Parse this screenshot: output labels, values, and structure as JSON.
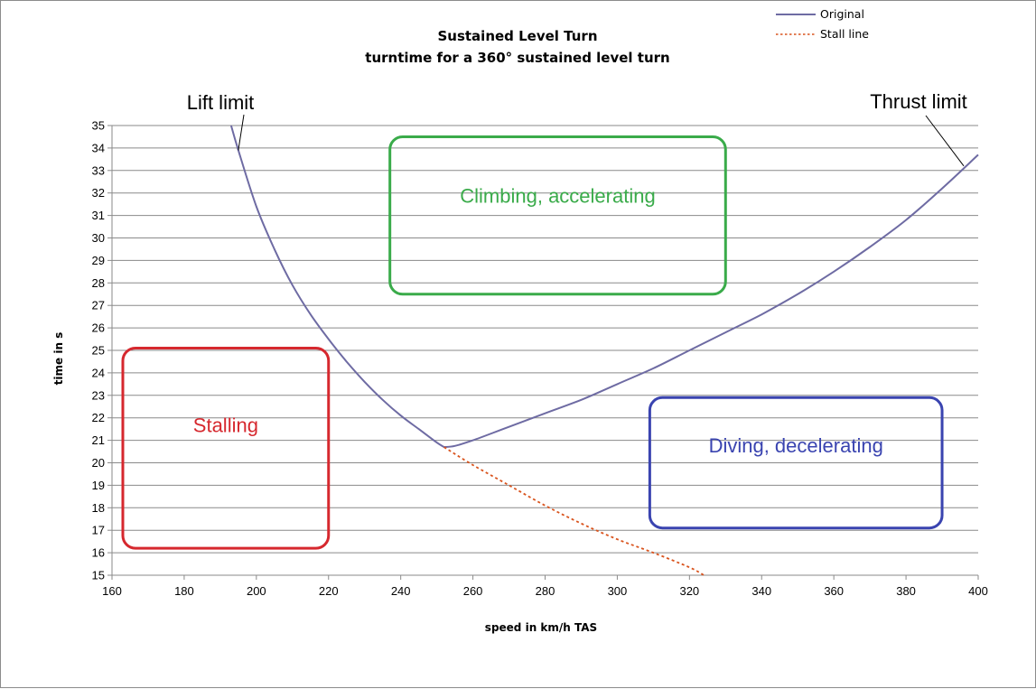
{
  "chart_data": {
    "type": "line",
    "title": "Sustained Level Turn",
    "subtitle": "turntime for a 360°  sustained level turn",
    "xlabel": "speed in km/h TAS",
    "ylabel": "time in s",
    "xlim": [
      160,
      400
    ],
    "ylim": [
      15,
      35
    ],
    "x_ticks": [
      160,
      180,
      200,
      220,
      240,
      260,
      280,
      300,
      320,
      340,
      360,
      380,
      400
    ],
    "y_ticks": [
      15,
      16,
      17,
      18,
      19,
      20,
      21,
      22,
      23,
      24,
      25,
      26,
      27,
      28,
      29,
      30,
      31,
      32,
      33,
      34,
      35
    ],
    "grid": "horizontal",
    "legend_position": "top-right",
    "series": [
      {
        "name": "Original",
        "color": "#6e6ba3",
        "style": "solid",
        "x": [
          193,
          195,
          200,
          205,
          210,
          215,
          220,
          225,
          230,
          235,
          240,
          245,
          250,
          252,
          255,
          260,
          270,
          280,
          290,
          300,
          310,
          320,
          330,
          340,
          350,
          360,
          370,
          380,
          390,
          400
        ],
        "y": [
          35,
          33.9,
          31.4,
          29.5,
          27.9,
          26.6,
          25.5,
          24.5,
          23.6,
          22.8,
          22.1,
          21.5,
          20.9,
          20.7,
          20.75,
          21.0,
          21.6,
          22.2,
          22.8,
          23.5,
          24.2,
          25.0,
          25.8,
          26.6,
          27.5,
          28.5,
          29.6,
          30.8,
          32.2,
          33.7
        ]
      },
      {
        "name": "Stall line",
        "color": "#d9541e",
        "style": "dotted",
        "x": [
          252,
          260,
          270,
          280,
          290,
          300,
          310,
          320,
          324
        ],
        "y": [
          20.7,
          19.9,
          19.0,
          18.1,
          17.3,
          16.6,
          16.0,
          15.35,
          15.0
        ]
      }
    ],
    "annotations": [
      {
        "text": "Lift limit",
        "x": 195,
        "y": 33.9
      },
      {
        "text": "Thrust limit",
        "x": 396,
        "y": 33.2
      }
    ],
    "regions": [
      {
        "label": "Climbing, accelerating",
        "color": "#3aab4a",
        "x": [
          237,
          330
        ],
        "y": [
          27.5,
          34.5
        ]
      },
      {
        "label": "Stalling",
        "color": "#d6282e",
        "x": [
          163,
          220
        ],
        "y": [
          16.2,
          25.1
        ]
      },
      {
        "label": "Diving, decelerating",
        "color": "#3a44b0",
        "x": [
          309,
          390
        ],
        "y": [
          17.1,
          22.9
        ]
      }
    ]
  }
}
